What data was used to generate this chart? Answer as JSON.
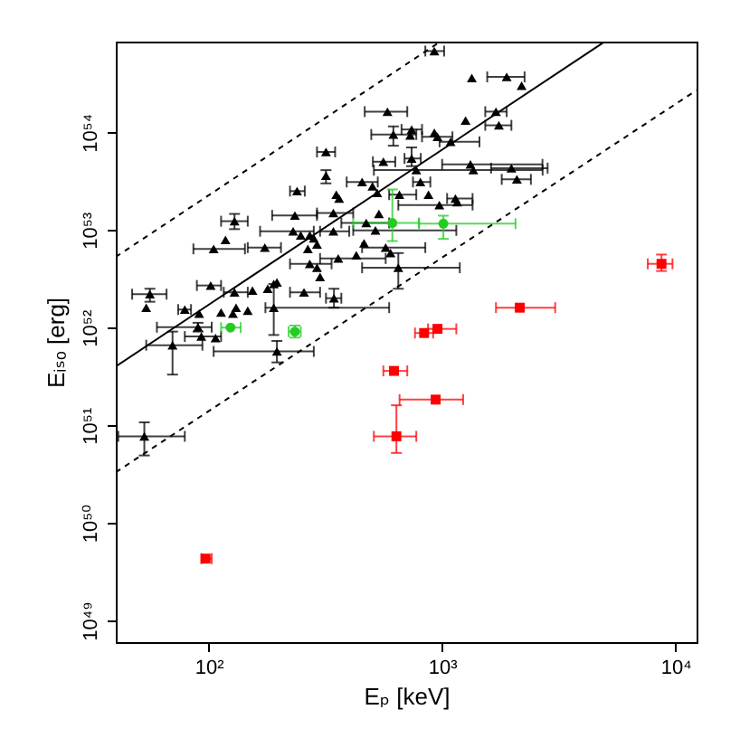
{
  "chart_data": {
    "type": "scatter",
    "xlabel": "Eₚ [keV]",
    "ylabel": "Eᵢₛₒ [erg]",
    "log": "xy",
    "xlim": [
      40,
      12300
    ],
    "ylim": [
      6e+48,
      8.5e+54
    ],
    "xticks": [
      {
        "value": 100,
        "label": "10²"
      },
      {
        "value": 1000,
        "label": "10³"
      },
      {
        "value": 10000,
        "label": "10⁴"
      }
    ],
    "yticks": [
      {
        "value": 1e+49,
        "label": "10⁴⁹"
      },
      {
        "value": 1e+50,
        "label": "10⁵⁰"
      },
      {
        "value": 1e+51,
        "label": "10⁵¹"
      },
      {
        "value": 1e+52,
        "label": "10⁵²"
      },
      {
        "value": 1e+53,
        "label": "10⁵³"
      },
      {
        "value": 1e+54,
        "label": "10⁵⁴"
      }
    ],
    "series": [
      {
        "type": "line",
        "color": "#000000",
        "line_style": "solid",
        "marker": "none",
        "x": [
          40,
          4900
        ],
        "values": [
          4e+51,
          8.3e+54
        ]
      },
      {
        "type": "line",
        "color": "#000000",
        "line_style": "dashed",
        "marker": "none",
        "x": [
          40,
          960
        ],
        "values": [
          5.3e+52,
          8.2e+54
        ]
      },
      {
        "type": "line",
        "color": "#000000",
        "line_style": "dashed",
        "marker": "none",
        "x": [
          40,
          12300
        ],
        "values": [
          3.3e+50,
          2.7e+54
        ]
      },
      {
        "color": "#000000",
        "marker": "triangle",
        "x": [
          926,
          1340,
          1890,
          2190,
          583,
          1700,
          1260,
          1750,
          618,
          740,
          730,
          926,
          955,
          1087,
          318,
          560,
          740,
          775,
          1322,
          1360,
          1980,
          2090,
          318,
          239,
          352,
          362,
          454,
          503,
          527,
          656,
          807,
          874,
          973,
          1140,
          1160,
          536,
          129,
          234,
          342,
          473,
          518,
          105,
          118,
          174,
          230,
          248,
          271,
          282,
          291,
          342,
          463,
          573,
          601,
          271,
          291,
          300,
          359,
          649,
          102,
          56,
          54,
          129,
          154,
          179,
          190,
          196,
          256,
          344,
          79,
          91,
          113,
          127,
          147,
          131,
          190,
          90,
          93,
          107,
          70,
          196,
          53,
          429,
          266
        ],
        "values": [
          6.8e+54,
          3.6e+54,
          3.7e+54,
          3e+54,
          1.63e+54,
          1.63e+54,
          1.32e+54,
          1.18e+54,
          9.5e+53,
          1.07e+54,
          9.3e+53,
          9.9e+53,
          9e+53,
          8e+53,
          6.3e+53,
          5e+53,
          5.4e+53,
          4.1e+53,
          4.7e+53,
          4.1e+53,
          4.3e+53,
          3.3e+53,
          3.6e+53,
          2.5e+53,
          2.3e+53,
          2.1e+53,
          3.1e+53,
          2.8e+53,
          2.4e+53,
          2.3e+53,
          3.1e+53,
          2.3e+53,
          1.8e+53,
          2.1e+53,
          1.93e+53,
          1.46e+53,
          1.23e+53,
          1.41e+53,
          1.49e+53,
          1.18e+53,
          9.9e+52,
          6.4e+52,
          7.9e+52,
          6.6e+52,
          9.7e+52,
          8.8e+52,
          8.8e+52,
          8.2e+52,
          7.1e+52,
          9.7e+52,
          7.3e+52,
          6.6e+52,
          5.8e+52,
          4.5e+52,
          4.1e+52,
          3.3e+52,
          5.1e+52,
          4.1e+52,
          2.7e+52,
          2.2e+52,
          1.6e+52,
          2.3e+52,
          2.4e+52,
          2.5e+52,
          2.8e+52,
          2.9e+52,
          2.3e+52,
          2e+52,
          1.53e+52,
          1.39e+52,
          1.43e+52,
          1.39e+52,
          1.49e+52,
          1.6e+52,
          1.6e+52,
          1.01e+52,
          8.1e+51,
          7.8e+51,
          6.6e+51,
          5.7e+51,
          7.7e+50,
          5.5e+52,
          6.4e+52
        ],
        "xerrors": [
          [
            847,
            1020
          ],
          null,
          [
            1560,
            2255
          ],
          null,
          [
            466,
            709
          ],
          [
            1530,
            1890
          ],
          null,
          [
            1530,
            1980
          ],
          [
            497,
            775
          ],
          [
            670,
            820
          ],
          null,
          null,
          [
            820,
            1107
          ],
          [
            975,
            1445
          ],
          [
            291,
            348
          ],
          [
            505,
            630
          ],
          [
            690,
            810
          ],
          [
            510,
            2694
          ],
          [
            1000,
            2690
          ],
          null,
          [
            1620,
            2830
          ],
          [
            1800,
            2400
          ],
          null,
          [
            223,
            258
          ],
          null,
          null,
          [
            390,
            530
          ],
          null,
          null,
          [
            593,
            775
          ],
          [
            750,
            890
          ],
          null,
          [
            649,
            1350
          ],
          [
            1050,
            1350
          ],
          null,
          null,
          [
            113,
            147
          ],
          [
            187,
            291
          ],
          [
            291,
            416
          ],
          [
            370,
            593
          ],
          [
            416,
            1150
          ],
          [
            86,
            143
          ],
          null,
          [
            147,
            204
          ],
          [
            166,
            282
          ],
          null,
          null,
          null,
          null,
          [
            300,
            400
          ],
          null,
          [
            454,
            847
          ],
          null,
          [
            223,
            336
          ],
          null,
          null,
          [
            300,
            573
          ],
          [
            454,
            1190
          ],
          [
            89,
            113
          ],
          [
            47,
            66
          ],
          null,
          [
            116,
            147
          ],
          null,
          null,
          null,
          null,
          [
            223,
            300
          ],
          [
            318,
            370
          ],
          [
            74,
            84
          ],
          null,
          null,
          null,
          null,
          null,
          [
            175,
            593
          ],
          [
            60,
            103
          ],
          [
            79,
            113
          ],
          null,
          [
            54,
            94
          ],
          [
            105,
            282
          ],
          [
            41,
            79
          ],
          null,
          null
        ],
        "errors": [
          null,
          null,
          null,
          null,
          null,
          null,
          null,
          null,
          [
            7.3e+53,
            1.15e+54
          ],
          null,
          null,
          null,
          null,
          null,
          null,
          null,
          [
            4.5e+53,
            7e+53
          ],
          null,
          null,
          null,
          null,
          null,
          [
            3e+53,
            4.1e+53
          ],
          null,
          null,
          null,
          null,
          null,
          null,
          null,
          null,
          null,
          null,
          null,
          null,
          null,
          [
            1.02e+53,
            1.46e+53
          ],
          null,
          null,
          null,
          null,
          null,
          null,
          null,
          null,
          null,
          null,
          null,
          null,
          null,
          null,
          null,
          null,
          null,
          null,
          null,
          null,
          [
            2.5e+52,
            5.8e+52
          ],
          null,
          [
            1.84e+52,
            2.5e+52
          ],
          null,
          null,
          null,
          null,
          null,
          null,
          null,
          [
            1.6e+52,
            2.5e+52
          ],
          null,
          null,
          null,
          null,
          null,
          null,
          [
            8.4e+51,
            2.8e+52
          ],
          [
            9.1e+51,
            1.12e+52
          ],
          null,
          null,
          [
            3.3e+51,
            9.1e+51
          ],
          [
            4.4e+51,
            7.3e+51
          ],
          [
            4.9e+50,
            1.07e+51
          ],
          null,
          null
        ]
      },
      {
        "color": "#22cc22",
        "marker": "circle",
        "x": [
          124,
          234,
          612,
          1012
        ],
        "values": [
          1e+52,
          9.1e+51,
          1.18e+53,
          1.16e+53
        ],
        "xerrors": [
          [
            113,
            137
          ],
          [
            220,
            248
          ],
          [
            416,
            796
          ],
          [
            796,
            2063
          ]
        ],
        "errors": [
          null,
          [
            7.9e+51,
            1.05e+52
          ],
          [
            7.7e+52,
            2.6e+53
          ],
          [
            8.1e+52,
            1.4e+53
          ]
        ]
      },
      {
        "color": "#ff0000",
        "marker": "square",
        "x": [
          97,
          622,
          637,
          938,
          837,
          955,
          2150,
          8700
        ],
        "values": [
          4.3e+49,
          3.6e+51,
          7.7e+50,
          1.83e+51,
          8.8e+51,
          9.7e+51,
          1.6e+52,
          4.5e+52
        ],
        "xerrors": [
          [
            93,
            103
          ],
          [
            560,
            709
          ],
          [
            510,
            775
          ],
          [
            657,
            1230
          ],
          [
            765,
            915
          ],
          [
            870,
            1150
          ],
          [
            1700,
            3050
          ],
          [
            7600,
            9700
          ]
        ],
        "errors": [
          null,
          null,
          [
            5.2e+50,
            1.6e+51
          ],
          null,
          null,
          null,
          null,
          [
            3.8e+52,
            5.6e+52
          ]
        ]
      }
    ]
  }
}
